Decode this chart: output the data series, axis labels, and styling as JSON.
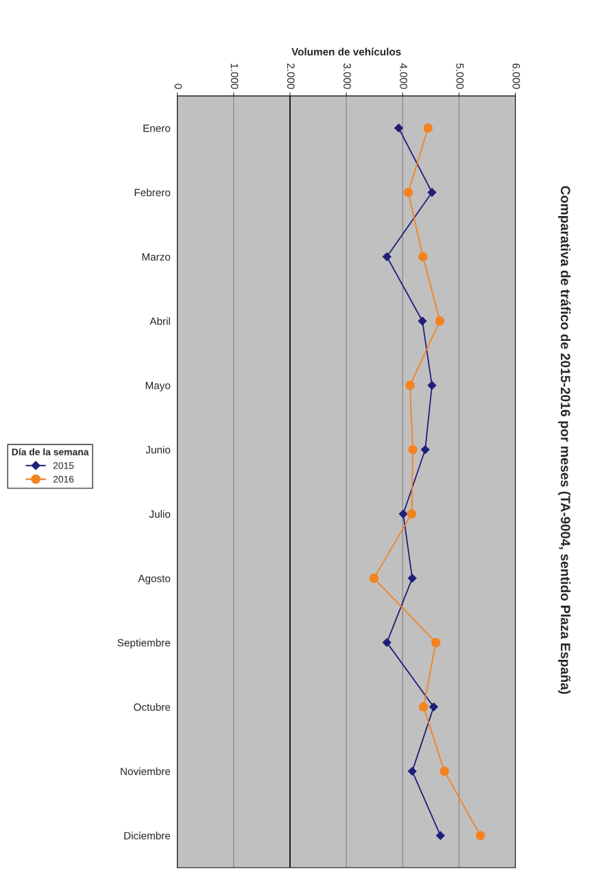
{
  "chart_data": {
    "type": "line",
    "orientation": "horizontal",
    "title": "Comparativa de tráfico de 2015-2016 por meses (TA-9004, sentido Plaza España)",
    "xlabel": "Volumen de vehículos",
    "legend_title": "Día de la semana",
    "categories": [
      "Enero",
      "Febrero",
      "Marzo",
      "Abril",
      "Mayo",
      "Junio",
      "Julio",
      "Agosto",
      "Septiembre",
      "Octubre",
      "Noviembre",
      "Diciembre"
    ],
    "series": [
      {
        "name": "2015",
        "color": "#1f1f7a",
        "marker": "diamond",
        "values": [
          3930,
          4520,
          3720,
          4350,
          4520,
          4400,
          4010,
          4170,
          3720,
          4550,
          4170,
          4670
        ]
      },
      {
        "name": "2016",
        "color": "#f58220",
        "marker": "circle",
        "values": [
          4450,
          4100,
          4360,
          4660,
          4130,
          4180,
          4160,
          3490,
          4590,
          4370,
          4740,
          5380
        ]
      }
    ],
    "xlim": [
      0,
      6000
    ],
    "xticks": [
      0,
      {
        "value": 1000,
        "label": "1.000"
      },
      {
        "value": 2000,
        "label": "2.000"
      },
      {
        "value": 3000,
        "label": "3.000"
      },
      {
        "value": 4000,
        "label": "4.000"
      },
      {
        "value": 5000,
        "label": "5.000"
      },
      {
        "value": 6000,
        "label": "6.000"
      }
    ],
    "ref_lines": [
      {
        "axis": "x",
        "value": 2000,
        "color": "#000000"
      }
    ],
    "grid": "x",
    "legend": "left",
    "line_style": "solid"
  }
}
